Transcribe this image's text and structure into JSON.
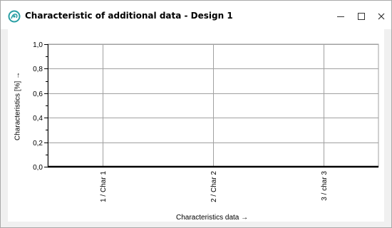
{
  "window": {
    "title": "Characteristic of additional data - Design 1",
    "icon": "app-logo-icon",
    "controls": [
      "minimize-icon",
      "maximize-icon",
      "close-icon"
    ]
  },
  "chart_data": {
    "type": "line",
    "categories": [
      "1 / Char 1",
      "2 / Char 2",
      "3 / char 3"
    ],
    "series": [
      {
        "values": [
          0,
          0,
          0
        ]
      }
    ],
    "yticks": [
      "1,0",
      "0,8",
      "0,6",
      "0,4",
      "0,2",
      "0,0"
    ],
    "ytick_values": [
      1.0,
      0.8,
      0.6,
      0.4,
      0.2,
      0.0
    ],
    "ylim": [
      0,
      1.0
    ],
    "xlabel": "Characteristics data →",
    "ylabel": "Characteristics [%] →",
    "grid": true
  },
  "colors": {
    "background": "#ffffff",
    "grid": "#a0a0a0",
    "series_line": "#000000",
    "icon_teal": "#2a9fa4"
  }
}
